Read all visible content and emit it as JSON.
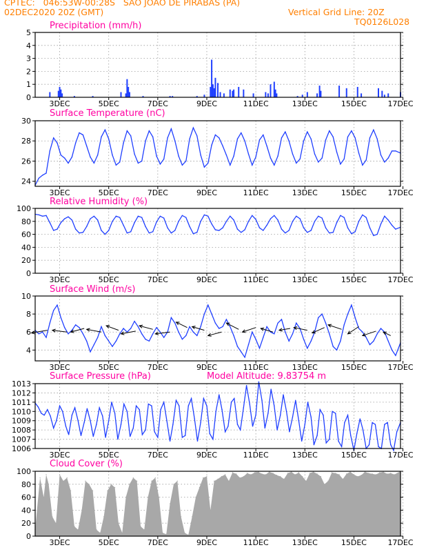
{
  "header": {
    "line1": "CPTEC:   046:53W-00:28S   SAO JOAO DE PIRABAS (PA)",
    "line2": "02DEC2020 20Z (GMT)",
    "grid_note": "Vertical Grid Line: 20Z",
    "code": "TQ0126L028"
  },
  "colors": {
    "header": "#ff7f00",
    "panel_title": "#ff00a0",
    "series": "#1f3fff",
    "bars": "#1f3fff",
    "cloud": "#a8a8a8",
    "arrows": "#000000",
    "grid": "#9a9a9a"
  },
  "x_axis": {
    "units": "days after 02DEC2020 20Z",
    "range": [
      0,
      14.9
    ],
    "tick_positions": [
      1,
      3,
      5,
      7,
      9,
      11,
      13,
      15
    ],
    "tick_labels": [
      "3DEC",
      "5DEC",
      "7DEC",
      "9DEC",
      "11DEC",
      "13DEC",
      "15DEC",
      "17DEC"
    ],
    "label_positions": [
      1,
      3,
      5,
      7,
      9,
      11,
      13,
      14.9
    ]
  },
  "chart_data": [
    {
      "id": "precip",
      "type": "bar",
      "title": "Precipitation (mm/h)",
      "ylim": [
        0,
        5
      ],
      "yticks": [
        0,
        1,
        2,
        3,
        4,
        5
      ],
      "grid": true,
      "x": [
        0.6,
        0.95,
        1.0,
        1.05,
        1.1,
        1.6,
        2.35,
        3.5,
        3.7,
        3.75,
        3.8,
        3.85,
        4.4,
        5.5,
        5.6,
        6.6,
        6.9,
        7.15,
        7.2,
        7.25,
        7.3,
        7.35,
        7.45,
        7.55,
        7.7,
        7.95,
        8.05,
        8.1,
        8.3,
        8.5,
        8.9,
        9.4,
        9.5,
        9.6,
        9.75,
        9.8,
        9.85,
        10.7,
        10.9,
        11.1,
        11.5,
        11.6,
        11.65,
        12.4,
        12.7,
        13.15,
        13.3,
        14.0,
        14.15,
        14.25,
        14.4,
        14.9
      ],
      "values": [
        0.4,
        0.5,
        0.8,
        0.6,
        0.3,
        0.1,
        0.1,
        0.4,
        0.3,
        1.4,
        0.8,
        0.4,
        0.1,
        0.1,
        0.1,
        0.1,
        0.2,
        0.8,
        2.9,
        1.0,
        0.7,
        1.5,
        1.1,
        0.4,
        0.3,
        0.6,
        0.5,
        0.6,
        0.8,
        0.6,
        0.3,
        0.4,
        0.3,
        1.0,
        1.2,
        0.6,
        0.3,
        0.1,
        0.2,
        0.4,
        0.3,
        0.9,
        0.5,
        0.9,
        0.7,
        0.8,
        0.3,
        0.7,
        0.5,
        0.2,
        0.3,
        0.4
      ]
    },
    {
      "id": "temp",
      "type": "line",
      "title": "Surface Temperature (nC)",
      "ylim": [
        23.5,
        30
      ],
      "yticks": [
        24,
        26,
        28,
        30
      ],
      "grid": true,
      "x": [
        0,
        0.15,
        0.3,
        0.45,
        0.6,
        0.75,
        0.9,
        1.05,
        1.2,
        1.35,
        1.5,
        1.65,
        1.8,
        1.95,
        2.1,
        2.25,
        2.4,
        2.55,
        2.7,
        2.85,
        3.0,
        3.15,
        3.3,
        3.45,
        3.6,
        3.75,
        3.9,
        4.05,
        4.2,
        4.35,
        4.5,
        4.65,
        4.8,
        4.95,
        5.1,
        5.25,
        5.4,
        5.55,
        5.7,
        5.85,
        6.0,
        6.15,
        6.3,
        6.45,
        6.6,
        6.75,
        6.9,
        7.05,
        7.2,
        7.35,
        7.5,
        7.65,
        7.8,
        7.95,
        8.1,
        8.25,
        8.4,
        8.55,
        8.7,
        8.85,
        9.0,
        9.15,
        9.3,
        9.45,
        9.6,
        9.75,
        9.9,
        10.05,
        10.2,
        10.35,
        10.5,
        10.65,
        10.8,
        10.95,
        11.1,
        11.25,
        11.4,
        11.55,
        11.7,
        11.85,
        12.0,
        12.15,
        12.3,
        12.45,
        12.6,
        12.75,
        12.9,
        13.05,
        13.2,
        13.35,
        13.5,
        13.65,
        13.8,
        13.95,
        14.1,
        14.25,
        14.4,
        14.55,
        14.7,
        14.9
      ],
      "values": [
        23.6,
        24.3,
        24.6,
        24.8,
        27.0,
        28.3,
        27.8,
        26.6,
        26.3,
        25.8,
        26.4,
        27.8,
        28.8,
        28.6,
        27.5,
        26.4,
        25.8,
        26.6,
        28.4,
        29.1,
        28.2,
        26.6,
        25.6,
        25.9,
        27.8,
        29.0,
        28.5,
        26.7,
        25.8,
        26.0,
        28.0,
        29.0,
        28.4,
        26.5,
        25.7,
        26.2,
        28.3,
        29.2,
        28.0,
        26.5,
        25.6,
        26.0,
        28.2,
        29.3,
        28.5,
        26.6,
        25.4,
        25.8,
        27.6,
        28.6,
        28.3,
        27.5,
        26.6,
        25.6,
        26.5,
        28.2,
        28.8,
        28.0,
        26.7,
        25.6,
        26.4,
        28.1,
        28.6,
        27.5,
        26.3,
        25.6,
        26.5,
        28.3,
        28.9,
        28.0,
        26.7,
        25.8,
        26.2,
        28.0,
        28.9,
        28.2,
        26.7,
        25.9,
        26.3,
        28.1,
        29.0,
        28.4,
        26.9,
        25.7,
        26.2,
        28.4,
        29.0,
        28.3,
        26.8,
        25.6,
        26.1,
        28.3,
        29.1,
        28.2,
        26.6,
        25.9,
        26.3,
        27.0,
        27.0,
        26.8
      ]
    },
    {
      "id": "rh",
      "type": "line",
      "title": "Relative Humidity (%)",
      "ylim": [
        0,
        100
      ],
      "yticks": [
        0,
        20,
        40,
        60,
        80,
        100
      ],
      "grid": true,
      "x": [
        0,
        0.15,
        0.3,
        0.45,
        0.6,
        0.75,
        0.9,
        1.05,
        1.2,
        1.35,
        1.5,
        1.65,
        1.8,
        1.95,
        2.1,
        2.25,
        2.4,
        2.55,
        2.7,
        2.85,
        3.0,
        3.15,
        3.3,
        3.45,
        3.6,
        3.75,
        3.9,
        4.05,
        4.2,
        4.35,
        4.5,
        4.65,
        4.8,
        4.95,
        5.1,
        5.25,
        5.4,
        5.55,
        5.7,
        5.85,
        6.0,
        6.15,
        6.3,
        6.45,
        6.6,
        6.75,
        6.9,
        7.05,
        7.2,
        7.35,
        7.5,
        7.65,
        7.8,
        7.95,
        8.1,
        8.25,
        8.4,
        8.55,
        8.7,
        8.85,
        9.0,
        9.15,
        9.3,
        9.45,
        9.6,
        9.75,
        9.9,
        10.05,
        10.2,
        10.35,
        10.5,
        10.65,
        10.8,
        10.95,
        11.1,
        11.25,
        11.4,
        11.55,
        11.7,
        11.85,
        12.0,
        12.15,
        12.3,
        12.45,
        12.6,
        12.75,
        12.9,
        13.05,
        13.2,
        13.35,
        13.5,
        13.65,
        13.8,
        13.95,
        14.1,
        14.25,
        14.4,
        14.55,
        14.7,
        14.9
      ],
      "values": [
        91,
        90,
        88,
        89,
        78,
        66,
        68,
        78,
        84,
        87,
        82,
        68,
        62,
        63,
        72,
        84,
        88,
        82,
        66,
        60,
        66,
        80,
        88,
        86,
        74,
        62,
        64,
        78,
        88,
        86,
        72,
        62,
        64,
        79,
        88,
        85,
        70,
        62,
        66,
        80,
        89,
        86,
        72,
        61,
        63,
        80,
        90,
        88,
        76,
        67,
        66,
        70,
        80,
        88,
        82,
        68,
        63,
        67,
        80,
        89,
        83,
        70,
        66,
        74,
        84,
        89,
        82,
        68,
        62,
        66,
        80,
        88,
        84,
        70,
        63,
        66,
        80,
        88,
        85,
        70,
        62,
        63,
        78,
        89,
        86,
        70,
        61,
        64,
        80,
        90,
        86,
        70,
        58,
        60,
        76,
        88,
        82,
        74,
        68,
        71
      ]
    },
    {
      "id": "wind",
      "type": "line",
      "title": "Surface Wind (m/s)",
      "ylim": [
        2.8,
        10
      ],
      "yticks": [
        4,
        6,
        8,
        10
      ],
      "grid": true,
      "x": [
        0,
        0.15,
        0.3,
        0.45,
        0.6,
        0.75,
        0.9,
        1.05,
        1.2,
        1.35,
        1.5,
        1.65,
        1.8,
        1.95,
        2.1,
        2.25,
        2.4,
        2.55,
        2.7,
        2.85,
        3.0,
        3.15,
        3.3,
        3.45,
        3.6,
        3.75,
        3.9,
        4.05,
        4.2,
        4.35,
        4.5,
        4.65,
        4.8,
        4.95,
        5.1,
        5.25,
        5.4,
        5.55,
        5.7,
        5.85,
        6.0,
        6.15,
        6.3,
        6.45,
        6.6,
        6.75,
        6.9,
        7.05,
        7.2,
        7.35,
        7.5,
        7.65,
        7.8,
        7.95,
        8.1,
        8.25,
        8.4,
        8.55,
        8.7,
        8.85,
        9.0,
        9.15,
        9.3,
        9.45,
        9.6,
        9.75,
        9.9,
        10.05,
        10.2,
        10.35,
        10.5,
        10.65,
        10.8,
        10.95,
        11.1,
        11.25,
        11.4,
        11.55,
        11.7,
        11.85,
        12.0,
        12.15,
        12.3,
        12.45,
        12.6,
        12.75,
        12.9,
        13.05,
        13.2,
        13.35,
        13.5,
        13.65,
        13.8,
        13.95,
        14.1,
        14.25,
        14.4,
        14.55,
        14.7,
        14.9
      ],
      "values": [
        6.2,
        5.8,
        6.0,
        5.4,
        7.0,
        8.4,
        9.0,
        7.6,
        6.5,
        5.8,
        6.2,
        6.8,
        6.5,
        5.8,
        5.0,
        3.8,
        4.6,
        5.4,
        6.6,
        5.6,
        5.0,
        4.4,
        5.0,
        5.8,
        6.4,
        6.0,
        6.4,
        7.2,
        6.6,
        5.8,
        5.2,
        5.0,
        5.8,
        6.5,
        6.0,
        5.4,
        6.0,
        7.6,
        7.0,
        6.0,
        5.2,
        5.6,
        6.6,
        6.0,
        5.6,
        6.6,
        8.0,
        9.0,
        8.0,
        7.0,
        6.4,
        6.6,
        7.4,
        6.6,
        5.6,
        4.4,
        3.8,
        3.2,
        4.6,
        6.0,
        5.2,
        4.2,
        5.4,
        6.6,
        6.0,
        5.8,
        7.0,
        7.4,
        6.0,
        5.0,
        5.8,
        7.0,
        6.4,
        5.2,
        4.2,
        5.0,
        6.0,
        7.6,
        8.0,
        7.0,
        5.8,
        4.4,
        4.0,
        5.0,
        6.8,
        8.0,
        9.0,
        7.6,
        6.4,
        6.0,
        5.4,
        4.6,
        5.0,
        5.8,
        6.4,
        6.0,
        5.0,
        4.0,
        3.4,
        4.8
      ],
      "arrows_x": [
        0.5,
        1.3,
        2.0,
        2.7,
        3.4,
        4.1,
        4.8,
        5.5,
        6.2,
        6.9,
        7.6,
        8.3,
        9.0,
        9.7,
        10.4,
        11.1,
        11.8,
        12.5,
        13.2,
        13.9,
        14.5
      ],
      "arrows_y": [
        6.2,
        6.0,
        6.4,
        6.0,
        6.2,
        6.1,
        6.3,
        6.0,
        6.5,
        6.2,
        6.0,
        6.3,
        6.5,
        6.0,
        6.4,
        6.2,
        6.5,
        6.3,
        6.6,
        6.1,
        5.6
      ],
      "arrows_dx": [
        -0.65,
        -0.6,
        -0.55,
        -0.6,
        -0.5,
        -0.6,
        -0.55,
        -0.6,
        -0.45,
        -0.5,
        -0.55,
        -0.5,
        -0.55,
        -0.5,
        -0.45,
        -0.55,
        -0.5,
        -0.55,
        -0.45,
        -0.55,
        -0.3
      ],
      "arrows_dy": [
        -0.3,
        0.2,
        -0.4,
        0.3,
        0.5,
        -0.3,
        0.4,
        -0.2,
        0.6,
        0.4,
        -0.4,
        0.7,
        -0.5,
        0.4,
        -0.2,
        0.3,
        -0.6,
        0.5,
        -0.8,
        -0.5,
        0.4
      ]
    },
    {
      "id": "pressure",
      "type": "line",
      "title": "Surface Pressure (hPa)",
      "annotation": "Model Altitude: 9.83754 m",
      "ylim": [
        1006,
        1013
      ],
      "yticks": [
        1006,
        1007,
        1008,
        1009,
        1010,
        1011,
        1012,
        1013
      ],
      "grid": true,
      "x": [
        0,
        0.12,
        0.25,
        0.37,
        0.5,
        0.62,
        0.75,
        0.87,
        1.0,
        1.12,
        1.25,
        1.37,
        1.5,
        1.62,
        1.75,
        1.87,
        2.0,
        2.12,
        2.25,
        2.37,
        2.5,
        2.62,
        2.75,
        2.87,
        3.0,
        3.12,
        3.25,
        3.37,
        3.5,
        3.62,
        3.75,
        3.87,
        4.0,
        4.12,
        4.25,
        4.37,
        4.5,
        4.62,
        4.75,
        4.87,
        5.0,
        5.12,
        5.25,
        5.37,
        5.5,
        5.62,
        5.75,
        5.87,
        6.0,
        6.12,
        6.25,
        6.37,
        6.5,
        6.62,
        6.75,
        6.87,
        7.0,
        7.12,
        7.25,
        7.37,
        7.5,
        7.62,
        7.75,
        7.87,
        8.0,
        8.12,
        8.25,
        8.37,
        8.5,
        8.62,
        8.75,
        8.87,
        9.0,
        9.12,
        9.25,
        9.37,
        9.5,
        9.62,
        9.75,
        9.87,
        10.0,
        10.12,
        10.25,
        10.37,
        10.5,
        10.62,
        10.75,
        10.87,
        11.0,
        11.12,
        11.25,
        11.37,
        11.5,
        11.62,
        11.75,
        11.87,
        12.0,
        12.12,
        12.25,
        12.37,
        12.5,
        12.62,
        12.75,
        12.87,
        13.0,
        13.12,
        13.25,
        13.37,
        13.5,
        13.62,
        13.75,
        13.87,
        14.0,
        14.12,
        14.25,
        14.37,
        14.5,
        14.62,
        14.75,
        14.9
      ],
      "values": [
        1010.9,
        1010.5,
        1009.8,
        1009.6,
        1010.2,
        1009.5,
        1008.2,
        1009.0,
        1010.6,
        1010.0,
        1008.4,
        1007.5,
        1009.6,
        1010.4,
        1009.0,
        1007.4,
        1008.8,
        1010.3,
        1009.0,
        1007.3,
        1008.6,
        1010.4,
        1009.5,
        1007.2,
        1009.0,
        1011.0,
        1009.8,
        1007.0,
        1008.6,
        1010.8,
        1010.0,
        1007.3,
        1008.2,
        1010.6,
        1010.2,
        1007.5,
        1008.0,
        1010.8,
        1010.6,
        1007.8,
        1007.2,
        1010.2,
        1011.0,
        1009.0,
        1006.8,
        1008.6,
        1011.2,
        1010.6,
        1007.2,
        1007.4,
        1010.6,
        1011.4,
        1009.2,
        1006.8,
        1008.8,
        1011.4,
        1010.6,
        1007.6,
        1007.0,
        1010.0,
        1011.8,
        1010.2,
        1007.8,
        1008.4,
        1011.0,
        1011.4,
        1008.6,
        1008.0,
        1010.4,
        1012.8,
        1010.8,
        1008.4,
        1009.6,
        1013.2,
        1011.2,
        1008.2,
        1009.8,
        1012.4,
        1010.6,
        1008.0,
        1009.6,
        1011.8,
        1010.0,
        1007.8,
        1009.4,
        1011.2,
        1009.0,
        1006.8,
        1008.6,
        1011.0,
        1009.4,
        1006.4,
        1007.4,
        1010.2,
        1009.6,
        1006.6,
        1007.0,
        1010.0,
        1009.8,
        1006.8,
        1006.2,
        1008.8,
        1009.6,
        1007.4,
        1005.8,
        1007.6,
        1009.2,
        1008.0,
        1006.0,
        1006.4,
        1008.8,
        1008.6,
        1006.2,
        1006.0,
        1008.6,
        1008.8,
        1006.4,
        1005.8,
        1007.8,
        1008.8
      ]
    },
    {
      "id": "cloud",
      "type": "area",
      "title": "Cloud Cover (%)",
      "ylim": [
        0,
        100
      ],
      "yticks": [
        0,
        20,
        40,
        60,
        80,
        100
      ],
      "grid": true,
      "x": [
        0,
        0.2,
        0.35,
        0.45,
        0.55,
        0.7,
        0.85,
        1.0,
        1.15,
        1.3,
        1.45,
        1.6,
        1.75,
        1.9,
        2.05,
        2.2,
        2.35,
        2.5,
        2.65,
        2.8,
        2.95,
        3.1,
        3.25,
        3.4,
        3.55,
        3.7,
        3.85,
        4.0,
        4.15,
        4.3,
        4.45,
        4.6,
        4.75,
        4.9,
        5.05,
        5.2,
        5.35,
        5.5,
        5.65,
        5.8,
        5.95,
        6.1,
        6.25,
        6.4,
        6.55,
        6.7,
        6.85,
        7.0,
        7.15,
        7.3,
        7.45,
        7.6,
        7.75,
        7.9,
        8.05,
        8.2,
        8.35,
        8.5,
        8.65,
        8.8,
        8.95,
        9.1,
        9.25,
        9.4,
        9.55,
        9.7,
        9.85,
        10.0,
        10.15,
        10.3,
        10.45,
        10.6,
        10.75,
        10.9,
        11.05,
        11.2,
        11.35,
        11.5,
        11.65,
        11.8,
        11.95,
        12.1,
        12.25,
        12.4,
        12.55,
        12.7,
        12.85,
        13.0,
        13.15,
        13.3,
        13.45,
        13.6,
        13.75,
        13.9,
        14.05,
        14.2,
        14.35,
        14.5,
        14.65,
        14.9
      ],
      "values": [
        10,
        90,
        60,
        95,
        80,
        30,
        20,
        95,
        85,
        90,
        70,
        15,
        10,
        40,
        85,
        80,
        70,
        10,
        5,
        30,
        70,
        80,
        75,
        20,
        5,
        60,
        80,
        90,
        85,
        15,
        10,
        60,
        85,
        90,
        60,
        5,
        3,
        50,
        80,
        85,
        30,
        5,
        2,
        30,
        60,
        75,
        90,
        92,
        40,
        85,
        88,
        92,
        95,
        85,
        98,
        96,
        90,
        92,
        97,
        95,
        98,
        99,
        96,
        95,
        99,
        97,
        94,
        92,
        88,
        97,
        99,
        95,
        98,
        92,
        85,
        97,
        99,
        96,
        92,
        80,
        85,
        98,
        97,
        95,
        88,
        96,
        99,
        95,
        92,
        94,
        99,
        97,
        96,
        95,
        98,
        99,
        96,
        97,
        95,
        100
      ]
    }
  ]
}
